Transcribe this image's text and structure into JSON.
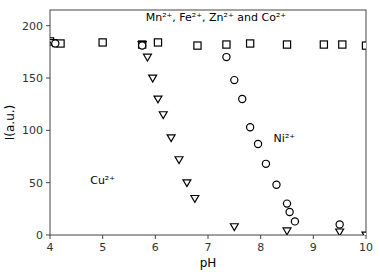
{
  "chart_data": {
    "type": "scatter",
    "xlabel": "pH",
    "ylabel": "I(a.u.)",
    "xlim": [
      4,
      10
    ],
    "ylim": [
      0,
      215
    ],
    "xticks": [
      4,
      5,
      6,
      7,
      8,
      9,
      10
    ],
    "yticks": [
      0,
      50,
      100,
      150,
      200
    ],
    "color": "#000000",
    "series": [
      {
        "marker": "square",
        "x": [
          4.0,
          4.2,
          5.0,
          5.75,
          6.05,
          6.8,
          7.35,
          7.8,
          8.5,
          9.2,
          9.55,
          10.0
        ],
        "values": [
          185,
          183,
          184,
          182,
          184,
          181,
          182,
          183,
          182,
          182,
          182,
          181
        ]
      },
      {
        "marker": "triangle-down",
        "x": [
          4.05,
          5.75,
          5.85,
          5.95,
          6.05,
          6.15,
          6.3,
          6.45,
          6.6,
          6.75,
          7.5,
          8.5,
          9.5,
          10.0
        ],
        "values": [
          184,
          182,
          170,
          150,
          130,
          115,
          93,
          72,
          50,
          35,
          8,
          4,
          3,
          0
        ]
      },
      {
        "marker": "circle",
        "x": [
          4.1,
          5.75,
          7.35,
          7.5,
          7.65,
          7.8,
          7.95,
          8.1,
          8.3,
          8.5,
          8.55,
          8.65,
          9.5
        ],
        "values": [
          183,
          181,
          170,
          148,
          130,
          103,
          87,
          68,
          48,
          30,
          22,
          13,
          10
        ]
      }
    ],
    "annotations": [
      {
        "text": "Cu²⁺",
        "x": 5.0,
        "y": 52
      },
      {
        "text": "Ni²⁺",
        "x": 8.45,
        "y": 92
      },
      {
        "text": "Mn²⁺, Fe²⁺, Zn²⁺ and Co²⁺",
        "x": 7.15,
        "y": 208
      }
    ]
  }
}
